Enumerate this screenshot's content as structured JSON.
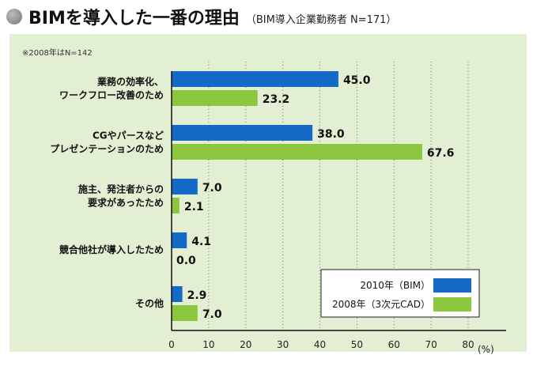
{
  "chart_data": {
    "type": "bar",
    "orientation": "horizontal",
    "title": "BIMを導入した一番の理由",
    "subtitle": "（BIM導入企業勤務者 N=171）",
    "note": "※2008年はN=142",
    "categories": [
      [
        "業務の効率化、",
        "ワークフロー改善のため"
      ],
      [
        "CGやパースなど",
        "プレゼンテーションのため"
      ],
      [
        "施主、発注者からの",
        "要求があったため"
      ],
      [
        "競合他社が導入したため"
      ],
      [
        "その他"
      ]
    ],
    "series": [
      {
        "name": "2010年（BIM）",
        "color": "#1569c7",
        "values": [
          45.0,
          38.0,
          7.0,
          4.1,
          2.9
        ]
      },
      {
        "name": "2008年（3次元CAD）",
        "color": "#8cc63f",
        "values": [
          23.2,
          67.6,
          2.1,
          0.0,
          7.0
        ]
      }
    ],
    "xlim": [
      0,
      80
    ],
    "xticks": [
      "0",
      "10",
      "20",
      "30",
      "40",
      "50",
      "60",
      "70",
      "80"
    ],
    "xunit": "(%)",
    "grid": "vertical dotted",
    "legend": "bottom-right",
    "panel_color": "#e2efd2"
  }
}
